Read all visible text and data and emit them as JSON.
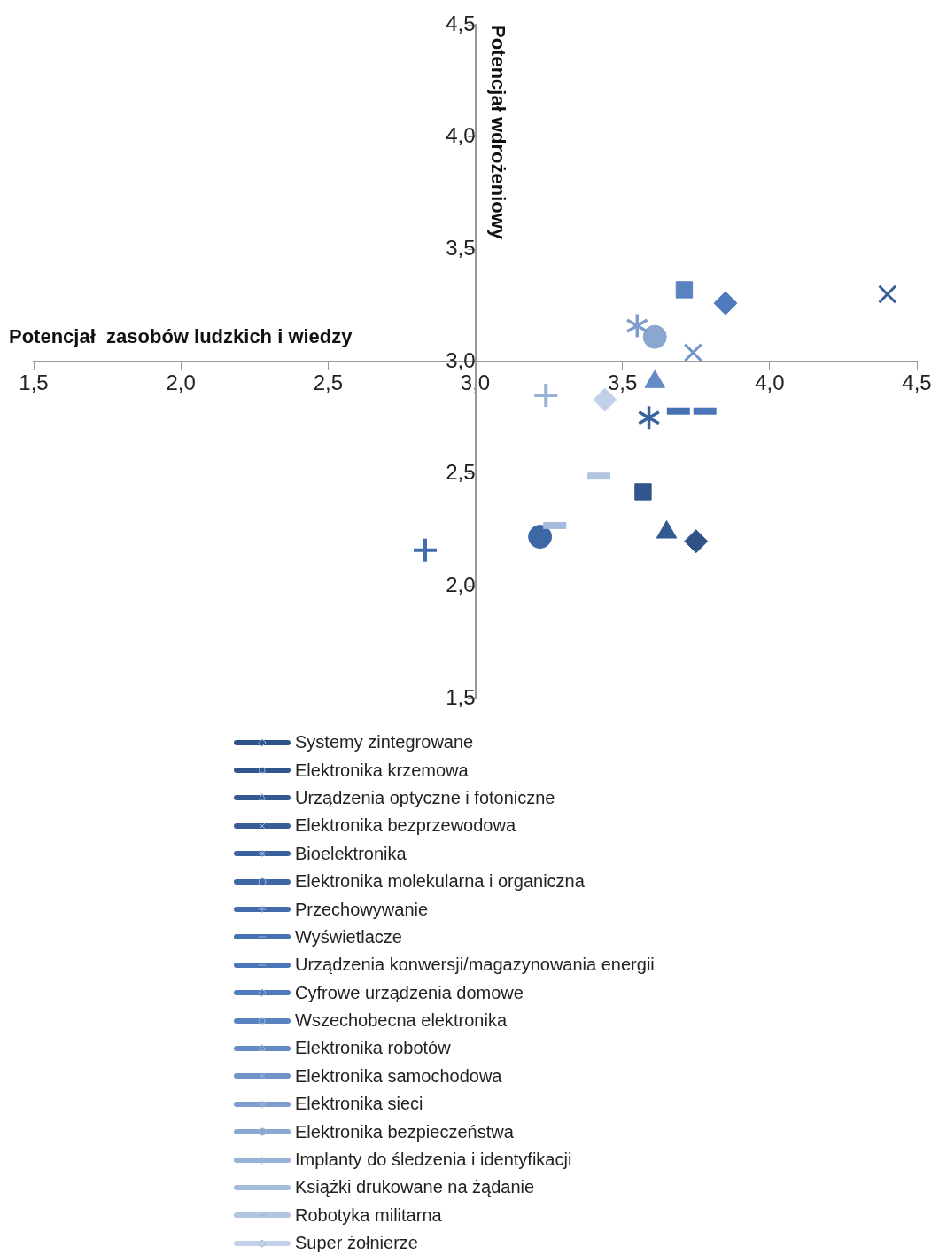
{
  "chart_data": {
    "type": "scatter",
    "xlabel": "Potencjał  zasobów ludzkich i wiedzy",
    "ylabel": "Potencjał wdrożeniowy",
    "xlim": [
      1.5,
      4.5
    ],
    "ylim": [
      1.5,
      4.5
    ],
    "xticks": [
      {
        "value": 1.5,
        "label": "1,5"
      },
      {
        "value": 2,
        "label": "2,0"
      },
      {
        "value": 2.5,
        "label": "2,5"
      },
      {
        "value": 3,
        "label": "3,0"
      },
      {
        "value": 3.5,
        "label": "3,5"
      },
      {
        "value": 4,
        "label": "4,0"
      },
      {
        "value": 4.5,
        "label": "4,5"
      }
    ],
    "yticks": [
      {
        "value": 1.5,
        "label": "1,5"
      },
      {
        "value": 2,
        "label": "2,0"
      },
      {
        "value": 2.5,
        "label": "2,5"
      },
      {
        "value": 3,
        "label": "3,0"
      },
      {
        "value": 3.5,
        "label": "3,5"
      },
      {
        "value": 4,
        "label": "4,0"
      },
      {
        "value": 4.5,
        "label": "4,5"
      }
    ],
    "grid": false,
    "legend": "bottom",
    "series": [
      {
        "name": "Systemy zintegrowane",
        "color": "#2f5287",
        "marker": "diamond",
        "x": [
          3.75
        ],
        "values": [
          2.2
        ]
      },
      {
        "name": "Elektronika krzemowa",
        "color": "#31558c",
        "marker": "square",
        "x": [
          3.57
        ],
        "values": [
          2.42
        ]
      },
      {
        "name": "Urządzenia optyczne i fotoniczne",
        "color": "#345a92",
        "marker": "triangle",
        "x": [
          3.65
        ],
        "values": [
          2.24
        ]
      },
      {
        "name": "Elektronika bezprzewodowa",
        "color": "#375e98",
        "marker": "x",
        "x": [
          4.4
        ],
        "values": [
          3.3
        ]
      },
      {
        "name": "Bioelektronika",
        "color": "#3a629e",
        "marker": "star",
        "x": [
          3.59
        ],
        "values": [
          2.75
        ]
      },
      {
        "name": "Elektronika molekularna i organiczna",
        "color": "#3e67a5",
        "marker": "circle",
        "x": [
          3.22
        ],
        "values": [
          2.22
        ]
      },
      {
        "name": "Przechowywanie",
        "color": "#426cab",
        "marker": "cross",
        "x": [
          2.83
        ],
        "values": [
          2.16
        ]
      },
      {
        "name": "Wyświetlacze",
        "color": "#4671b1",
        "x": [
          3.69
        ],
        "values": [
          2.78
        ]
      },
      {
        "name": "Urządzenia konwersji/magazynowania energii",
        "color": "#4a76b7",
        "x": [
          3.78
        ],
        "values": [
          2.78
        ]
      },
      {
        "name": "Cyfrowe urządzenia domowe",
        "color": "#4f7bbc",
        "marker": "diamond",
        "x": [
          3.85
        ],
        "values": [
          3.26
        ]
      },
      {
        "name": "Wszechobecna elektronika",
        "color": "#5a83c1",
        "marker": "square",
        "x": [
          3.71
        ],
        "values": [
          3.32
        ]
      },
      {
        "name": "Elektronika robotów",
        "color": "#658bc5",
        "marker": "triangle",
        "x": [
          3.61
        ],
        "values": [
          2.91
        ]
      },
      {
        "name": "Elektronika samochodowa",
        "color": "#7194c9",
        "marker": "x",
        "x": [
          3.74
        ],
        "values": [
          3.04
        ]
      },
      {
        "name": "Elektronika sieci",
        "color": "#7d9dcd",
        "marker": "star",
        "x": [
          3.55
        ],
        "values": [
          3.16
        ]
      },
      {
        "name": "Elektronika bezpieczeństwa",
        "color": "#8aa7d2",
        "marker": "circle",
        "x": [
          3.61
        ],
        "values": [
          3.11
        ]
      },
      {
        "name": "Implanty do śledzenia i identyfikacji",
        "color": "#97b1d7",
        "marker": "cross",
        "x": [
          3.24
        ],
        "values": [
          2.85
        ]
      },
      {
        "name": "Książki drukowane na żądanie",
        "color": "#a4bbdc",
        "x": [
          3.27
        ],
        "values": [
          2.27
        ]
      },
      {
        "name": "Robotyka militarna",
        "color": "#b2c5e1",
        "x": [
          3.42
        ],
        "values": [
          2.49
        ]
      },
      {
        "name": "Super żołnierze",
        "color": "#c3d1e8",
        "marker": "diamond",
        "x": [
          3.44
        ],
        "values": [
          2.83
        ]
      }
    ]
  }
}
